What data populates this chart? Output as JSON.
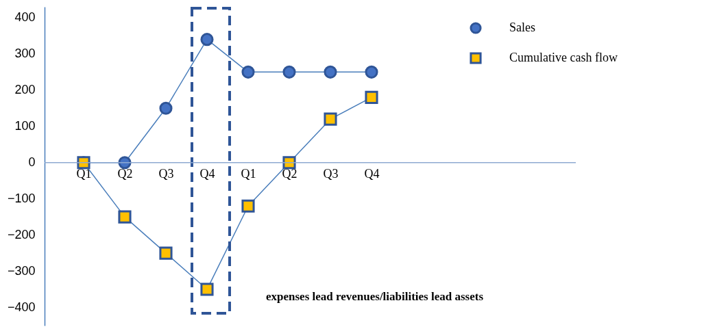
{
  "chart_data": {
    "type": "line",
    "categories": [
      "Q1",
      "Q2",
      "Q3",
      "Q4",
      "Q1",
      "Q2",
      "Q3",
      "Q4"
    ],
    "series": [
      {
        "name": "Sales",
        "color": "#4472c4",
        "marker": "circle",
        "values": [
          0,
          0,
          150,
          340,
          250,
          250,
          250,
          250
        ]
      },
      {
        "name": "Cumulative cash flow",
        "color": "#ffc000",
        "marker": "square",
        "values": [
          0,
          -150,
          -250,
          -350,
          -120,
          0,
          120,
          180
        ]
      }
    ],
    "ylim": [
      -450,
      430
    ],
    "yticks": [
      -400,
      -300,
      -200,
      -100,
      0,
      100,
      200,
      300,
      400
    ],
    "annotations": [
      "expenses lead revenues/liabilities lead assets"
    ],
    "legend": "top right",
    "grid": false
  }
}
